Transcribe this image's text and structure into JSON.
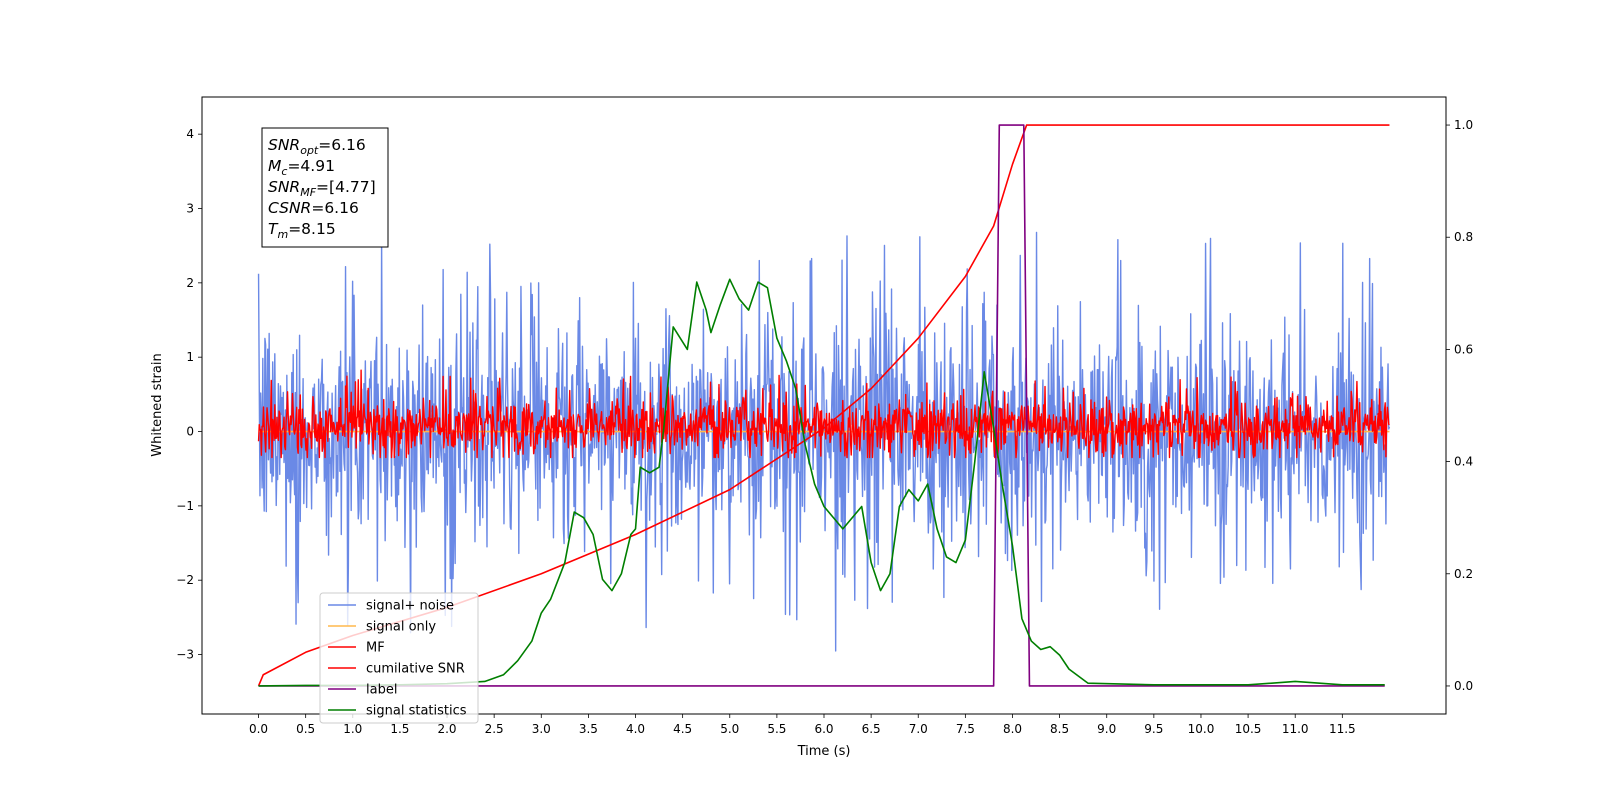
{
  "chart_data": {
    "type": "line",
    "xlabel": "Time (s)",
    "ylabel": "Whitened strain",
    "xlim": [
      -0.6,
      12.6
    ],
    "ylim_left": [
      -3.8,
      4.5
    ],
    "ylim_right": [
      -0.05,
      1.05
    ],
    "x_ticks": [
      0.0,
      0.5,
      1.0,
      1.5,
      2.0,
      2.5,
      3.0,
      3.5,
      4.0,
      4.5,
      5.0,
      5.5,
      6.0,
      6.5,
      7.0,
      7.5,
      8.0,
      8.5,
      9.0,
      9.5,
      10.0,
      10.5,
      11.0,
      11.5
    ],
    "x_tick_labels": [
      "0.0",
      "0.5",
      "1.0",
      "1.5",
      "2.0",
      "2.5",
      "3.0",
      "3.5",
      "4.0",
      "4.5",
      "5.0",
      "5.5",
      "6.0",
      "6.5",
      "7.0",
      "7.5",
      "8.0",
      "8.5",
      "9.0",
      "9.5",
      "10.0",
      "10.5",
      "11.0",
      "11.5"
    ],
    "y_left_ticks": [
      -3,
      -2,
      -1,
      0,
      1,
      2,
      3,
      4
    ],
    "y_left_tick_labels": [
      "−3",
      "−2",
      "−1",
      "0",
      "1",
      "2",
      "3",
      "4"
    ],
    "y_right_ticks": [
      0.0,
      0.2,
      0.4,
      0.6,
      0.8,
      1.0
    ],
    "y_right_tick_labels": [
      "0.0",
      "0.2",
      "0.4",
      "0.6",
      "0.8",
      "1.0"
    ],
    "grid": false,
    "legend_placement": "lower-left",
    "series": [
      {
        "name": "signal+ noise",
        "axis": "left",
        "color": "#6a89e6",
        "kind": "noise",
        "x_range": [
          0,
          12.0
        ],
        "typical_range": [
          -1.7,
          1.7
        ],
        "extreme_range": [
          -3.2,
          4.2
        ]
      },
      {
        "name": "signal only",
        "axis": "left",
        "color": "#ffb84d",
        "kind": "flat",
        "x_range": [
          0,
          12.0
        ],
        "value": 0
      },
      {
        "name": "MF",
        "axis": "left",
        "color": "#ff0000",
        "kind": "noise",
        "x_range": [
          0,
          12.0
        ],
        "typical_range": [
          -0.35,
          0.5
        ],
        "extreme_range": [
          -0.35,
          1.0
        ]
      },
      {
        "name": "cumilative SNR",
        "axis": "right",
        "color": "#ff0000",
        "x": [
          0.0,
          0.05,
          0.5,
          1.0,
          2.0,
          3.0,
          4.0,
          5.0,
          6.0,
          6.5,
          7.0,
          7.5,
          7.8,
          8.0,
          8.15,
          8.2,
          12.0
        ],
        "y": [
          0.0,
          0.02,
          0.06,
          0.09,
          0.14,
          0.2,
          0.27,
          0.35,
          0.46,
          0.53,
          0.62,
          0.73,
          0.82,
          0.93,
          1.0,
          1.0,
          1.0
        ]
      },
      {
        "name": "label",
        "axis": "right",
        "color": "#800080",
        "x": [
          0.0,
          7.8,
          7.86,
          8.12,
          8.18,
          11.95
        ],
        "y": [
          0.0,
          0.0,
          1.0,
          1.0,
          0.0,
          0.0
        ]
      },
      {
        "name": "signal statistics",
        "axis": "right",
        "color": "#007f00",
        "x": [
          0.0,
          0.5,
          1.0,
          1.5,
          2.0,
          2.4,
          2.6,
          2.75,
          2.9,
          3.0,
          3.1,
          3.25,
          3.35,
          3.45,
          3.55,
          3.65,
          3.75,
          3.85,
          3.95,
          4.0,
          4.05,
          4.15,
          4.25,
          4.3,
          4.4,
          4.55,
          4.65,
          4.75,
          4.8,
          4.9,
          5.0,
          5.1,
          5.2,
          5.3,
          5.4,
          5.5,
          5.6,
          5.7,
          5.8,
          5.9,
          6.0,
          6.2,
          6.4,
          6.5,
          6.6,
          6.7,
          6.8,
          6.9,
          7.0,
          7.1,
          7.2,
          7.3,
          7.4,
          7.5,
          7.6,
          7.7,
          7.8,
          7.9,
          8.0,
          8.1,
          8.2,
          8.3,
          8.4,
          8.5,
          8.6,
          8.8,
          9.5,
          10.5,
          11.0,
          11.5,
          11.95
        ],
        "y": [
          0.0,
          0.001,
          0.001,
          0.002,
          0.004,
          0.008,
          0.02,
          0.045,
          0.08,
          0.13,
          0.155,
          0.22,
          0.31,
          0.3,
          0.27,
          0.19,
          0.17,
          0.2,
          0.27,
          0.28,
          0.39,
          0.38,
          0.39,
          0.46,
          0.64,
          0.6,
          0.72,
          0.67,
          0.63,
          0.68,
          0.725,
          0.69,
          0.67,
          0.72,
          0.71,
          0.62,
          0.58,
          0.53,
          0.43,
          0.36,
          0.32,
          0.28,
          0.32,
          0.22,
          0.17,
          0.2,
          0.32,
          0.35,
          0.33,
          0.36,
          0.28,
          0.23,
          0.22,
          0.26,
          0.4,
          0.56,
          0.46,
          0.35,
          0.25,
          0.12,
          0.08,
          0.065,
          0.07,
          0.055,
          0.03,
          0.005,
          0.002,
          0.002,
          0.008,
          0.002,
          0.002
        ]
      }
    ],
    "annotations": [
      {
        "base": "SNR",
        "sub": "opt",
        "rest": "=6.16"
      },
      {
        "base": "M",
        "sub": "c",
        "rest": "=4.91"
      },
      {
        "base": "SNR",
        "sub": "MF",
        "rest": "=[4.77]"
      },
      {
        "base": "CSNR",
        "sub": "",
        "rest": "=6.16"
      },
      {
        "base": "T",
        "sub": "m",
        "rest": "=8.15"
      }
    ]
  }
}
